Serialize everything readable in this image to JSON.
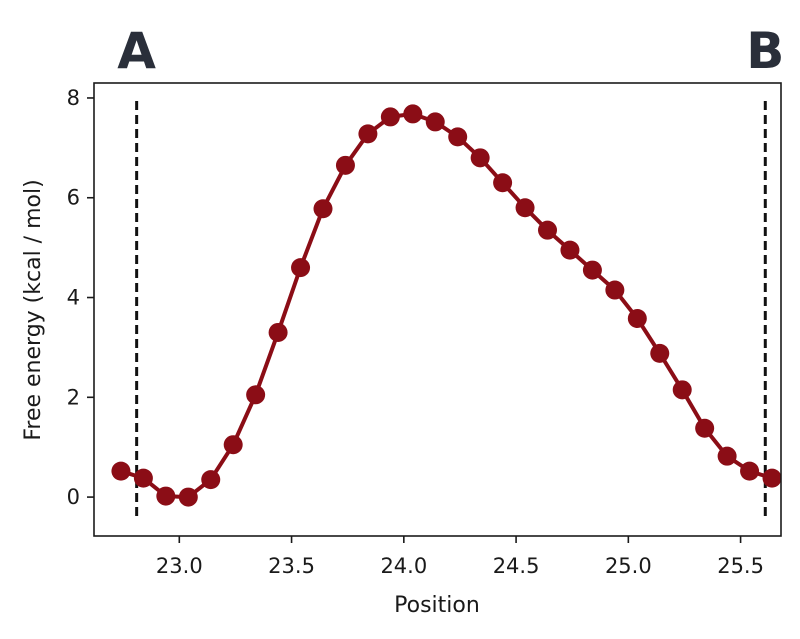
{
  "chart_data": {
    "type": "line",
    "title": "",
    "xlabel": "Position",
    "ylabel": "Free energy (kcal / mol)",
    "xlim": [
      22.62,
      25.68
    ],
    "ylim": [
      -0.78,
      8.3
    ],
    "grid": false,
    "x_ticks": [
      "23.0",
      "23.5",
      "24.0",
      "24.5",
      "25.0",
      "25.5"
    ],
    "x_tick_values": [
      23.0,
      23.5,
      24.0,
      24.5,
      25.0,
      25.5
    ],
    "y_ticks": [
      "0",
      "2",
      "4",
      "6",
      "8"
    ],
    "y_tick_values": [
      0,
      2,
      4,
      6,
      8
    ],
    "series": [
      {
        "color": "#8b0d16",
        "x": [
          22.74,
          22.84,
          22.94,
          23.04,
          23.14,
          23.24,
          23.34,
          23.44,
          23.54,
          23.64,
          23.74,
          23.84,
          23.94,
          24.04,
          24.14,
          24.24,
          24.34,
          24.44,
          24.54,
          24.64,
          24.74,
          24.84,
          24.94,
          25.04,
          25.14,
          25.24,
          25.34,
          25.44,
          25.54,
          25.64
        ],
        "y": [
          0.52,
          0.38,
          0.02,
          0.0,
          0.35,
          1.05,
          2.05,
          3.3,
          4.6,
          5.78,
          6.65,
          7.28,
          7.62,
          7.68,
          7.52,
          7.22,
          6.8,
          6.3,
          5.8,
          5.35,
          4.95,
          4.55,
          4.15,
          3.58,
          2.88,
          2.15,
          1.38,
          0.82,
          0.52,
          0.38
        ]
      }
    ],
    "vlines": [
      {
        "x": 22.81,
        "label": "A"
      },
      {
        "x": 25.61,
        "label": "B"
      }
    ]
  }
}
